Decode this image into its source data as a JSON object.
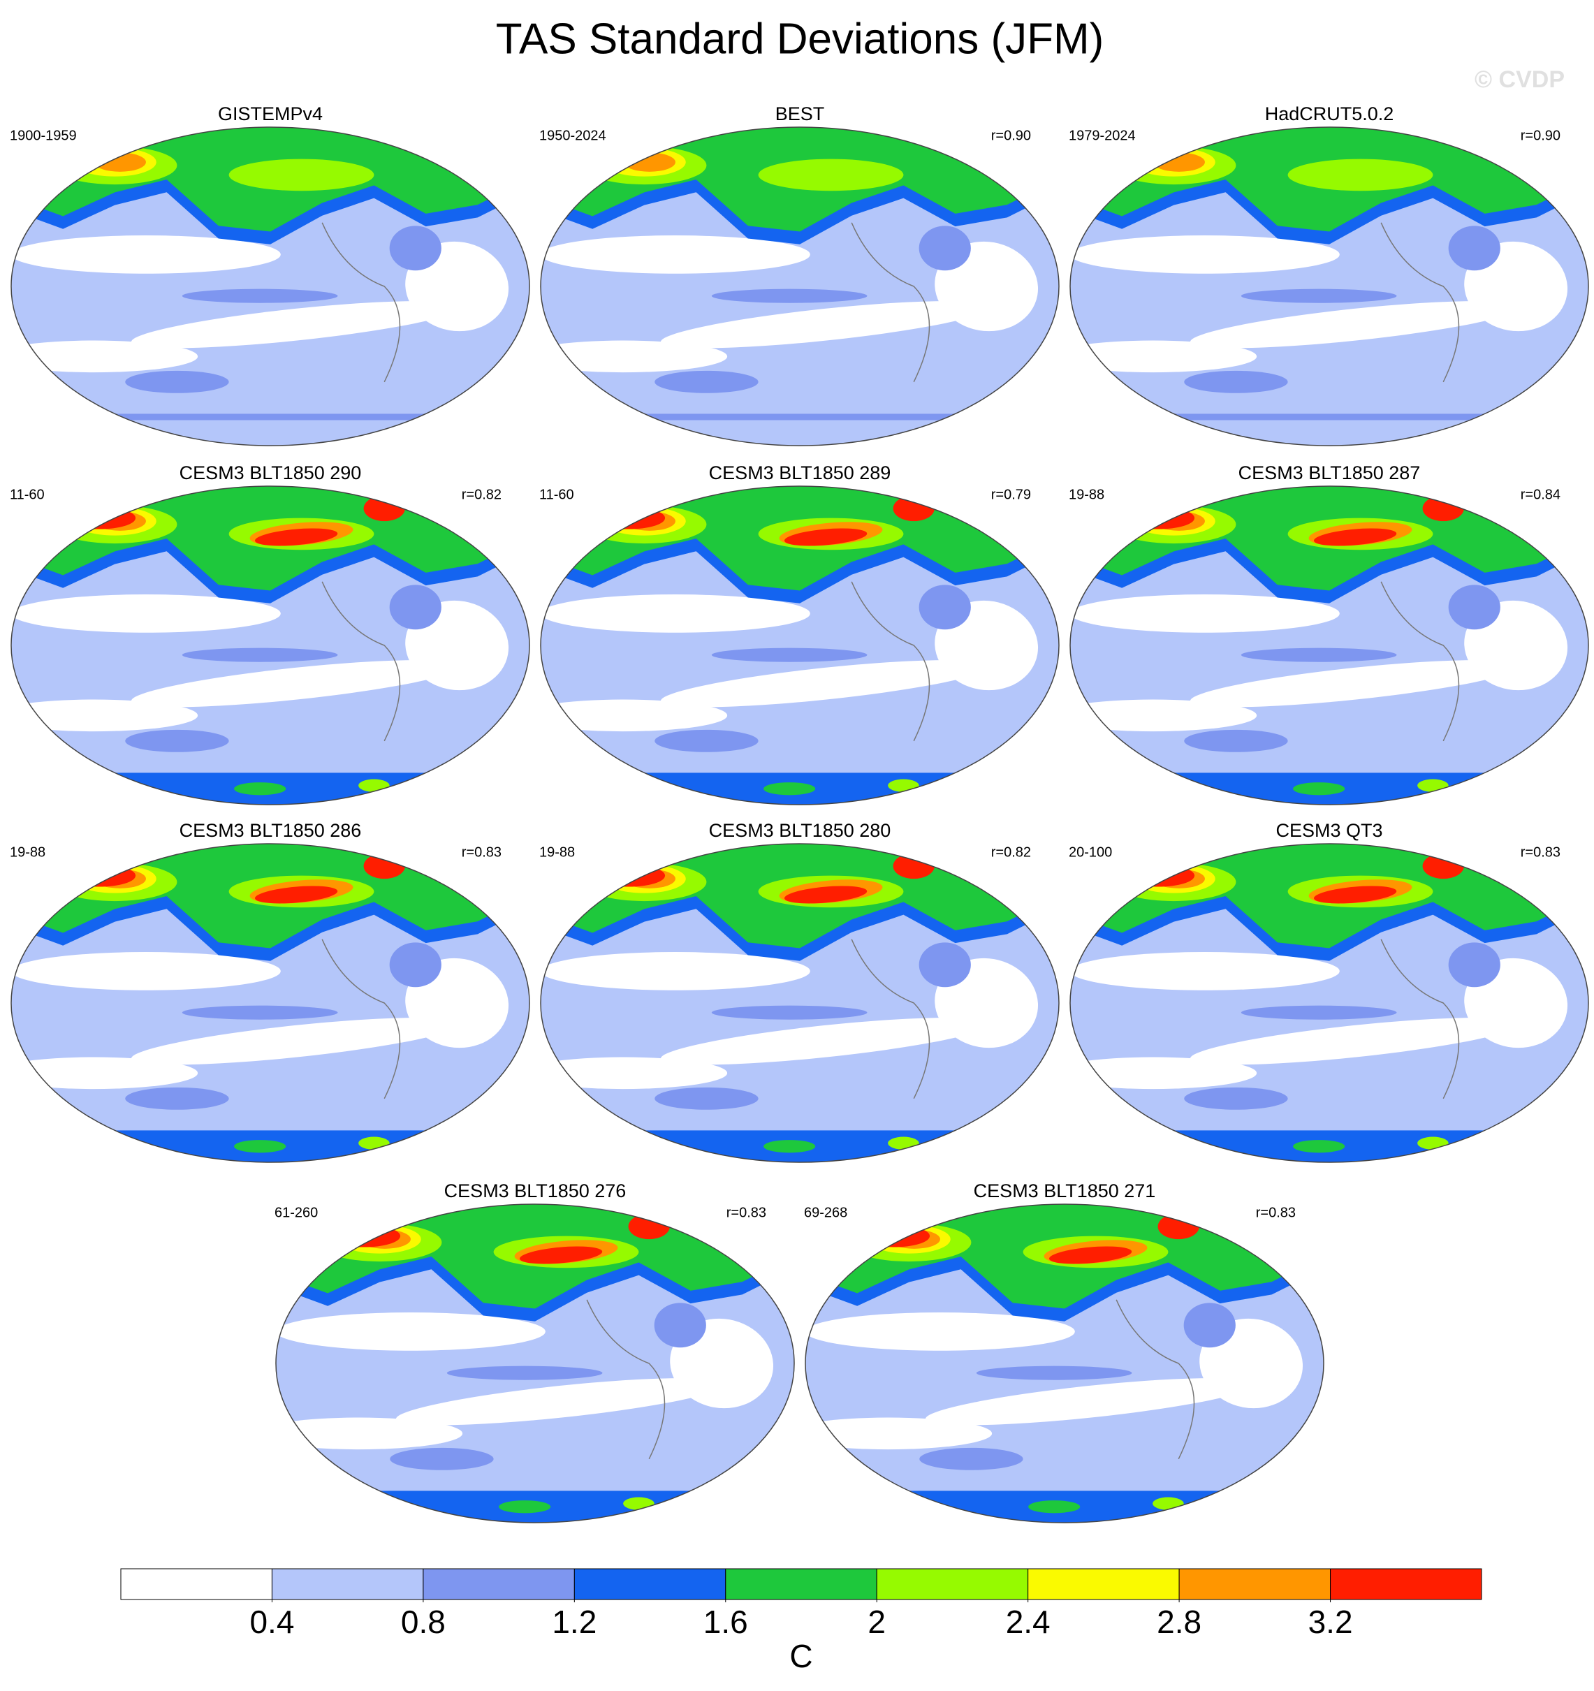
{
  "title": "TAS Standard Deviations (JFM)",
  "watermark": "© CVDP",
  "panels": [
    {
      "title": "GISTEMPv4",
      "left_label": "1900-1959"
    },
    {
      "title": "BEST",
      "left_label": "1950-2024",
      "right_label": "r=0.90"
    },
    {
      "title": "HadCRUT5.0.2",
      "left_label": "1979-2024",
      "right_label": "r=0.90"
    },
    {
      "title": "CESM3 BLT1850 290",
      "left_label": "11-60",
      "right_label": "r=0.82"
    },
    {
      "title": "CESM3 BLT1850 289",
      "left_label": "11-60",
      "right_label": "r=0.79"
    },
    {
      "title": "CESM3 BLT1850 287",
      "left_label": "19-88",
      "right_label": "r=0.84"
    },
    {
      "title": "CESM3 BLT1850 286",
      "left_label": "19-88",
      "right_label": "r=0.83"
    },
    {
      "title": "CESM3 BLT1850 280",
      "left_label": "19-88",
      "right_label": "r=0.82"
    },
    {
      "title": "CESM3 QT3",
      "left_label": "20-100",
      "right_label": "r=0.83"
    },
    {
      "title": "CESM3 BLT1850 276",
      "left_label": "61-260",
      "right_label": "r=0.83"
    },
    {
      "title": "CESM3 BLT1850 271",
      "left_label": "69-268",
      "right_label": "r=0.83"
    }
  ],
  "colorbar": {
    "levels": [
      0.4,
      0.8,
      1.2,
      1.6,
      2,
      2.4,
      2.8,
      3.2
    ],
    "colors": [
      "#ffffff",
      "#b4c6fa",
      "#7e96f0",
      "#1464f0",
      "#1ec83c",
      "#96fa00",
      "#fafa00",
      "#ff9600",
      "#ff1e00"
    ],
    "label": "C"
  }
}
